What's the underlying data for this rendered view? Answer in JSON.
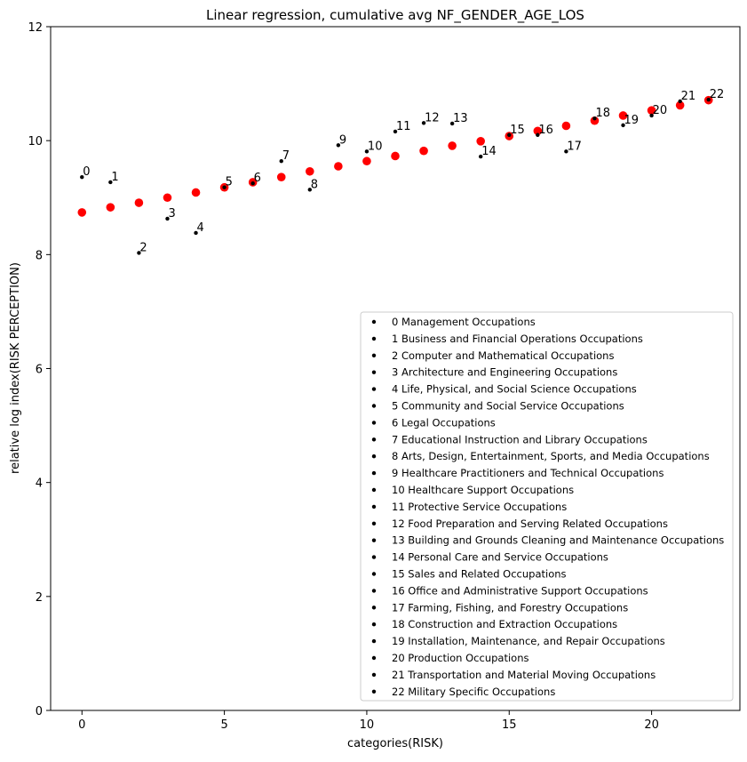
{
  "chart_data": {
    "type": "scatter",
    "title": "Linear regression, cumulative avg NF_GENDER_AGE_LOS",
    "xlabel": "categories(RISK)",
    "ylabel": "relative log index(RISK PERCEPTION)",
    "xlim": [
      -1.1,
      23.1
    ],
    "ylim": [
      0,
      12
    ],
    "xticks": [
      0,
      5,
      10,
      15,
      20
    ],
    "yticks": [
      0,
      2,
      4,
      6,
      8,
      10,
      12
    ],
    "grid": false,
    "legend_position": "lower-right",
    "series": [
      {
        "name": "",
        "color": "#000000",
        "marker": "small-dot",
        "x": [
          0,
          1,
          2,
          3,
          4,
          5,
          6,
          7,
          8,
          9,
          10,
          11,
          12,
          13,
          14,
          15,
          16,
          17,
          18,
          19,
          20,
          21,
          22
        ],
        "y": [
          9.36,
          9.27,
          8.03,
          8.63,
          8.38,
          9.18,
          9.25,
          9.64,
          9.14,
          9.92,
          9.81,
          10.16,
          10.31,
          10.3,
          9.72,
          10.1,
          10.1,
          9.81,
          10.39,
          10.27,
          10.44,
          10.69,
          10.72
        ],
        "labels": [
          "0",
          "1",
          "2",
          "3",
          "4",
          "5",
          "6",
          "7",
          "8",
          "9",
          "10",
          "11",
          "12",
          "13",
          "14",
          "15",
          "16",
          "17",
          "18",
          "19",
          "20",
          "21",
          "22"
        ]
      },
      {
        "name": "",
        "color": "#ff0000",
        "marker": "dot",
        "x": [
          0,
          1,
          2,
          3,
          4,
          5,
          6,
          7,
          8,
          9,
          10,
          11,
          12,
          13,
          14,
          15,
          16,
          17,
          18,
          19,
          20,
          21,
          22
        ],
        "y": [
          8.74,
          8.83,
          8.91,
          9.0,
          9.09,
          9.18,
          9.27,
          9.36,
          9.46,
          9.55,
          9.64,
          9.73,
          9.82,
          9.91,
          9.99,
          10.08,
          10.17,
          10.26,
          10.35,
          10.44,
          10.53,
          10.62,
          10.71
        ]
      }
    ],
    "legend": [
      "0 Management Occupations",
      "1 Business and Financial Operations Occupations",
      "2 Computer and Mathematical Occupations",
      "3 Architecture and Engineering Occupations",
      "4 Life, Physical, and Social Science Occupations",
      "5 Community and Social Service Occupations",
      "6 Legal Occupations",
      "7 Educational Instruction and Library Occupations",
      "8 Arts, Design, Entertainment, Sports, and Media Occupations",
      "9 Healthcare Practitioners and Technical Occupations",
      "10 Healthcare Support Occupations",
      "11 Protective Service Occupations",
      "12 Food Preparation and Serving Related Occupations",
      "13 Building and Grounds Cleaning and Maintenance Occupations",
      "14 Personal Care and Service Occupations",
      "15 Sales and Related Occupations",
      "16 Office and Administrative Support Occupations",
      "17 Farming, Fishing, and Forestry Occupations",
      "18 Construction and Extraction Occupations",
      "19 Installation, Maintenance, and Repair Occupations",
      "20 Production Occupations",
      "21 Transportation and Material Moving Occupations",
      "22 Military Specific Occupations"
    ]
  }
}
